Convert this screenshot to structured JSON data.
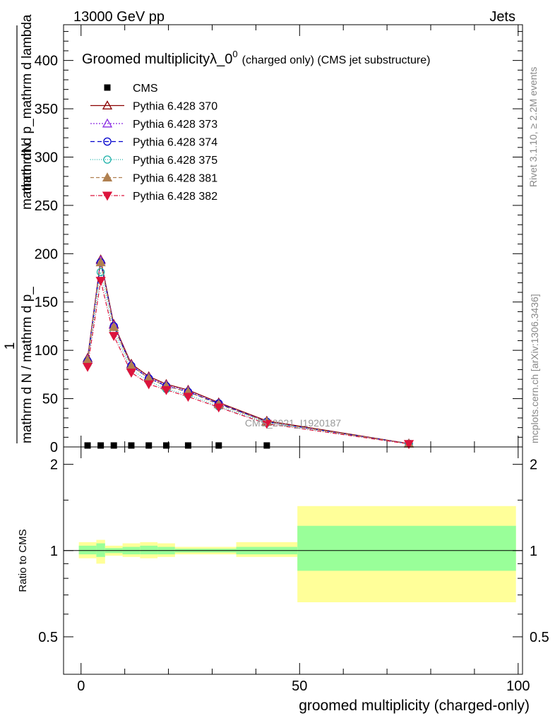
{
  "header": {
    "left": "13000 GeV pp",
    "right": "Jets"
  },
  "side_labels": {
    "rivet": "Rivet 3.1.10, ≥ 2.2M events",
    "mcplots": "mcplots.cern.ch [arXiv:1306.3436]"
  },
  "chart_data": {
    "type": "line",
    "title": "Groomed multiplicity",
    "title_symbol": "λ_0",
    "title_superscript": "0",
    "title_suffix": "(charged only) (CMS jet substructure)",
    "watermark": "CMS_2021_I1920187",
    "ylabel_top": "1",
    "ylabel_num": "mathrm dN",
    "ylabel_den": "mathrm d p_mathrm d lambda",
    "ylabel_bottom_num": "mathrm d N / mathrm d p_",
    "ylabel_bottom": "mathrm d N / mathrm d p_mathrm d p_",
    "ylabel_lower": "mathrm d N / mathrm d p_mathrm d p_",
    "ylabel_frac_den": "mathrm d N / mathrm d p_mathrm d p_",
    "xlabel": "groomed multiplicity (charged-only)",
    "ratio_ylabel": "Ratio to CMS",
    "xlim": [
      -4,
      101
    ],
    "ylim": [
      0,
      437
    ],
    "ratio_ylim": [
      0.37,
      2.3
    ],
    "x_ticks": [
      "0",
      "50",
      "100"
    ],
    "y_ticks": [
      "0",
      "50",
      "100",
      "150",
      "200",
      "250",
      "300",
      "350",
      "400"
    ],
    "ratio_ticks": [
      "0.5",
      "1",
      "2"
    ],
    "legend": [
      "CMS",
      "Pythia 6.428 370",
      "Pythia 6.428 373",
      "Pythia 6.428 374",
      "Pythia 6.428 375",
      "Pythia 6.428 381",
      "Pythia 6.428 382"
    ],
    "x": [
      1.5,
      4.5,
      7.5,
      11.5,
      15.5,
      19.5,
      24.5,
      31.5,
      42.5,
      75
    ],
    "cms": [
      1.5,
      1.5,
      1.5,
      1.5,
      1.5,
      1.5,
      1.5,
      1.5,
      1.5
    ],
    "series": [
      {
        "name": "Pythia 6.428 370",
        "color": "#8b0000",
        "dash": "",
        "marker": "triangle-open",
        "values": [
          92,
          194,
          127,
          86,
          73,
          65,
          59,
          46,
          27,
          3.5
        ]
      },
      {
        "name": "Pythia 6.428 373",
        "color": "#8a2be2",
        "dash": "2,2",
        "marker": "triangle-open",
        "values": [
          91,
          193,
          126,
          85,
          72,
          64,
          58,
          45,
          26,
          3.4
        ]
      },
      {
        "name": "Pythia 6.428 374",
        "color": "#0000cd",
        "dash": "6,4",
        "marker": "circle-open",
        "values": [
          89,
          191,
          125,
          84,
          71,
          63,
          57,
          45,
          26,
          3.3
        ]
      },
      {
        "name": "Pythia 6.428 375",
        "color": "#20b2aa",
        "dash": "1,2",
        "marker": "circle-open",
        "values": [
          86,
          181,
          120,
          80,
          68,
          60,
          54,
          42,
          25,
          3.2
        ]
      },
      {
        "name": "Pythia 6.428 381",
        "color": "#b08050",
        "dash": "5,3",
        "marker": "triangle-filled",
        "values": [
          90,
          191,
          124,
          84,
          71,
          63,
          57,
          44,
          26,
          3.3
        ]
      },
      {
        "name": "Pythia 6.428 382",
        "color": "#dc143c",
        "dash": "6,2,1,2",
        "marker": "triangle-down-filled",
        "values": [
          83,
          172,
          115,
          77,
          65,
          59,
          52,
          41,
          24,
          3.1
        ]
      }
    ],
    "ratio_bands": [
      {
        "x0": -0.5,
        "x1": 3.5,
        "yel": [
          0.94,
          1.07
        ],
        "grn": [
          0.97,
          1.04
        ]
      },
      {
        "x0": 3.5,
        "x1": 5.5,
        "yel": [
          0.9,
          1.09
        ],
        "grn": [
          0.95,
          1.06
        ]
      },
      {
        "x0": 5.5,
        "x1": 9.5,
        "yel": [
          0.96,
          1.04
        ],
        "grn": [
          0.98,
          1.02
        ]
      },
      {
        "x0": 9.5,
        "x1": 13.5,
        "yel": [
          0.95,
          1.06
        ],
        "grn": [
          0.97,
          1.03
        ]
      },
      {
        "x0": 13.5,
        "x1": 17.5,
        "yel": [
          0.94,
          1.07
        ],
        "grn": [
          0.97,
          1.04
        ]
      },
      {
        "x0": 17.5,
        "x1": 21.5,
        "yel": [
          0.95,
          1.06
        ],
        "grn": [
          0.97,
          1.03
        ]
      },
      {
        "x0": 21.5,
        "x1": 35.5,
        "yel": [
          0.97,
          1.03
        ],
        "grn": [
          0.985,
          1.015
        ]
      },
      {
        "x0": 35.5,
        "x1": 49.5,
        "yel": [
          0.95,
          1.07
        ],
        "grn": [
          0.97,
          1.03
        ]
      },
      {
        "x0": 49.5,
        "x1": 99.5,
        "yel": [
          0.66,
          1.43
        ],
        "grn": [
          0.85,
          1.22
        ]
      }
    ]
  }
}
